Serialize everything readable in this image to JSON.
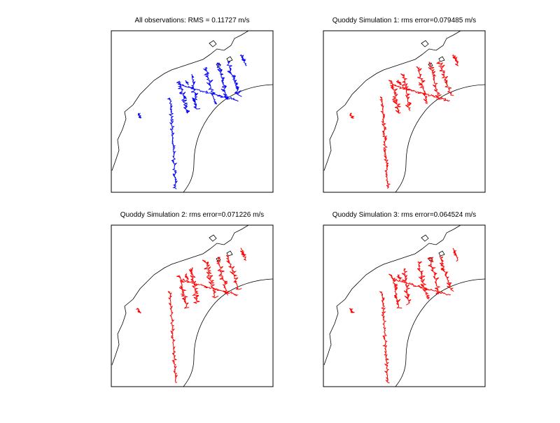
{
  "panels": [
    {
      "title": "All observations: RMS = 0.11727 m/s",
      "color": "#0000ff"
    },
    {
      "title": "Quoddy Simulation 1: rms error=0.079485 m/s",
      "color": "#ff0000"
    },
    {
      "title": "Quoddy Simulation 2: rms error=0.071226 m/s",
      "color": "#ff0000"
    },
    {
      "title": "Quoddy Simulation 3: rms error=0.064524 m/s",
      "color": "#ff0000"
    }
  ]
}
